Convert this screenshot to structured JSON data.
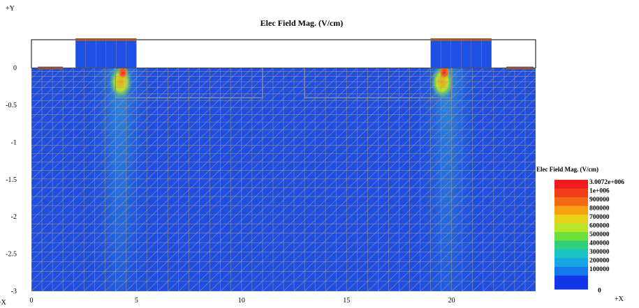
{
  "chart_data": {
    "type": "heatmap",
    "title": "Elec Field Mag. (V/cm)",
    "y_axis_marker": "+Y",
    "x_axis_marker": "+X",
    "x_origin_marker": "+X",
    "xlim": [
      0,
      24
    ],
    "ylim": [
      -3,
      0.38
    ],
    "x_ticks": [
      {
        "value": 0,
        "label": "0"
      },
      {
        "value": 5,
        "label": "5"
      },
      {
        "value": 10,
        "label": "10"
      },
      {
        "value": 15,
        "label": "15"
      },
      {
        "value": 20,
        "label": "20"
      }
    ],
    "y_ticks": [
      {
        "value": 0,
        "label": "0"
      },
      {
        "value": -0.5,
        "label": "-0.5"
      },
      {
        "value": -1,
        "label": "-1"
      },
      {
        "value": -1.5,
        "label": "-1.5"
      },
      {
        "value": -2,
        "label": "-2"
      },
      {
        "value": -2.5,
        "label": "-2.5"
      },
      {
        "value": -3,
        "label": "-3"
      }
    ],
    "grid": "triangular-mesh",
    "colorbar": {
      "title": "Elec Field Mag. (V/cm)",
      "placement": "right",
      "entries": [
        {
          "label": "3.0072e+006",
          "color": "#ee1c1c"
        },
        {
          "label": "1e+006",
          "color": "#f03f18"
        },
        {
          "label": "900000",
          "color": "#f46a14"
        },
        {
          "label": "800000",
          "color": "#f6a012"
        },
        {
          "label": "700000",
          "color": "#e7d21a"
        },
        {
          "label": "600000",
          "color": "#b9e628"
        },
        {
          "label": "500000",
          "color": "#6cdf3a"
        },
        {
          "label": "400000",
          "color": "#2fd07c"
        },
        {
          "label": "300000",
          "color": "#1cc3c3"
        },
        {
          "label": "200000",
          "color": "#16a6e6"
        },
        {
          "label": "100000",
          "color": "#1278ec"
        },
        {
          "label": "0",
          "color": "#1036e6"
        }
      ]
    },
    "regions": {
      "silicon": {
        "x": [
          0,
          24
        ],
        "y": [
          -3,
          0
        ],
        "color": "#1f4ee0"
      },
      "oxide_outline": {
        "x": [
          0,
          24
        ],
        "y": [
          0,
          0.38
        ]
      },
      "gates": [
        {
          "x": [
            2.1,
            5.0
          ],
          "y": [
            0,
            0.38
          ],
          "color": "#1f50e6",
          "contact_color": "#9a5a3a"
        },
        {
          "x": [
            19.0,
            21.9
          ],
          "y": [
            0,
            0.38
          ],
          "color": "#1f50e6",
          "contact_color": "#9a5a3a"
        }
      ],
      "side_contacts": [
        {
          "x": [
            0.3,
            1.5
          ],
          "y": [
            0,
            0.02
          ],
          "color": "#9a5a3a"
        },
        {
          "x": [
            22.6,
            23.9
          ],
          "y": [
            0,
            0.02
          ],
          "color": "#9a5a3a"
        }
      ],
      "junction_outlines": [
        {
          "x": [
            4.0,
            11.0
          ],
          "y": [
            -0.4,
            0
          ]
        },
        {
          "x": [
            13.0,
            20.0
          ],
          "y": [
            -0.4,
            0
          ]
        }
      ],
      "field_hotspots": [
        {
          "x": [
            3.2,
            5.2
          ],
          "y": [
            -3,
            0
          ],
          "level": 0.35
        },
        {
          "x": [
            18.8,
            20.8
          ],
          "y": [
            -3,
            0
          ],
          "level": 0.35
        },
        {
          "x": [
            3.9,
            4.6
          ],
          "y": [
            -0.38,
            0
          ],
          "level": 0.7
        },
        {
          "x": [
            19.2,
            19.9
          ],
          "y": [
            -0.38,
            0
          ],
          "level": 0.7
        },
        {
          "x": [
            4.2,
            4.5
          ],
          "y": [
            -0.1,
            0
          ],
          "level": 1.0
        },
        {
          "x": [
            19.5,
            19.8
          ],
          "y": [
            -0.1,
            0
          ],
          "level": 1.0
        }
      ]
    }
  }
}
